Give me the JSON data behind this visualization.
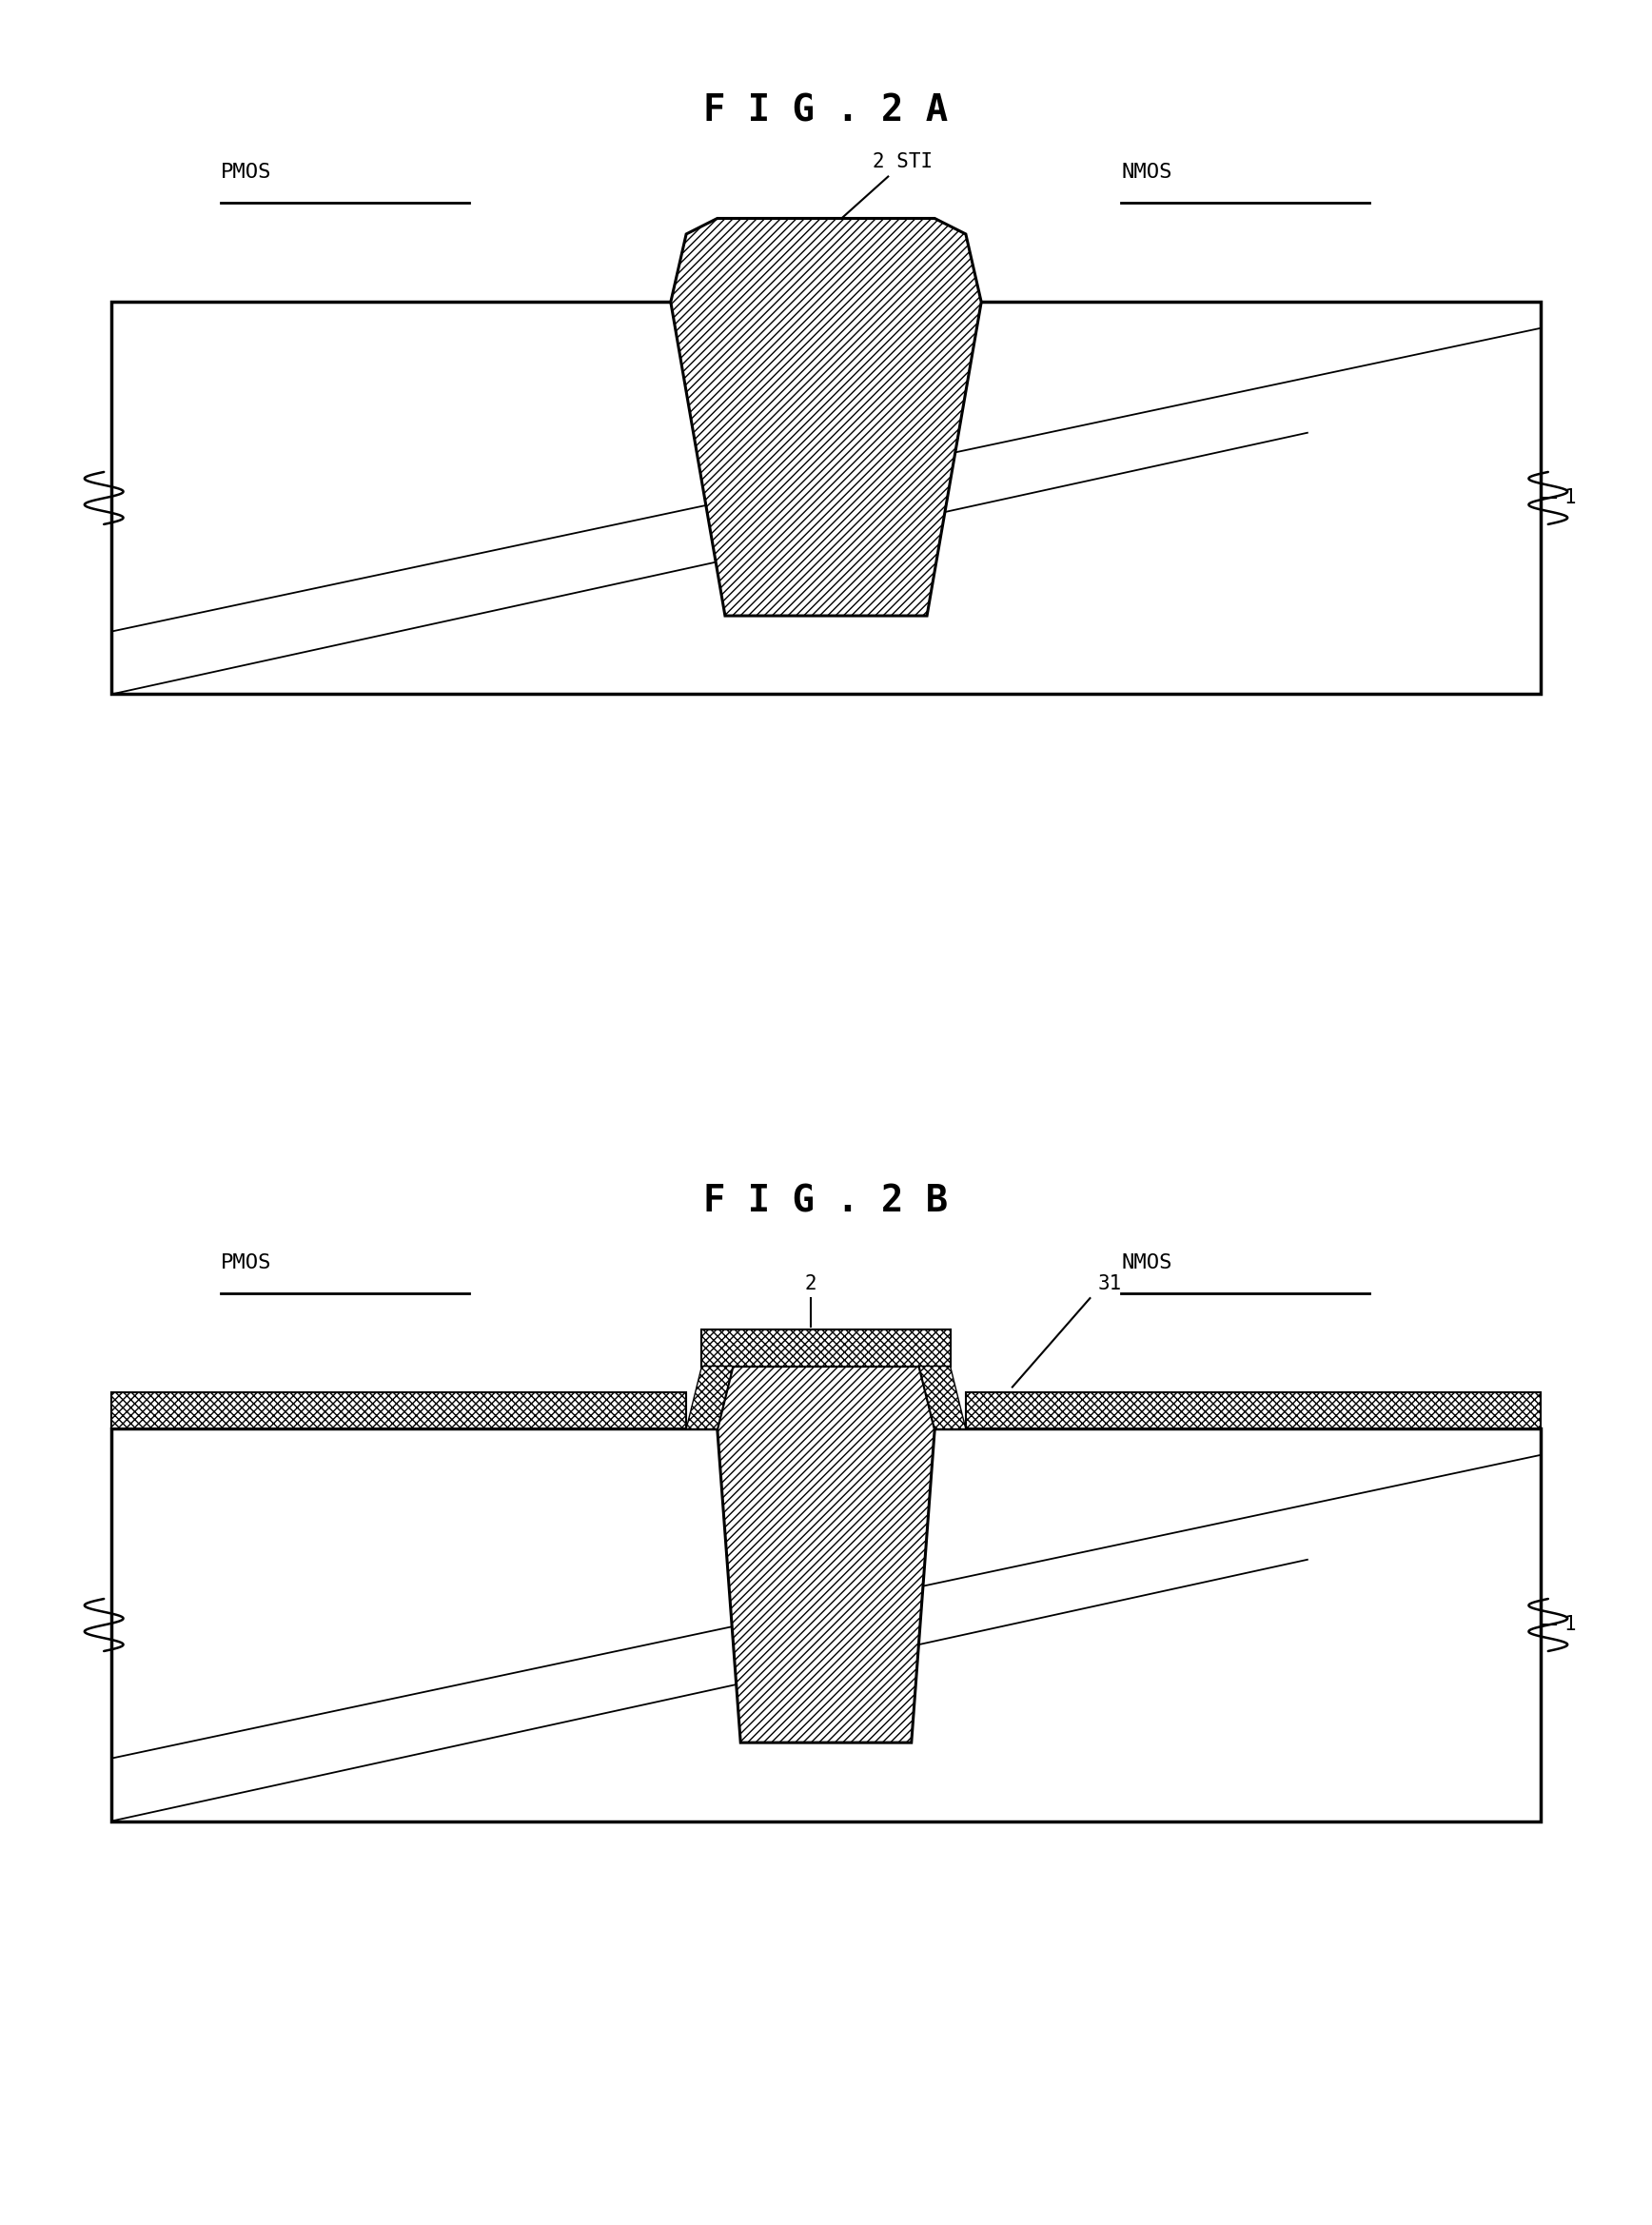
{
  "fig_title_a": "F I G . 2 A",
  "fig_title_b": "F I G . 2 B",
  "label_pmos": "PMOS",
  "label_nmos": "NMOS",
  "label_1": "1",
  "label_2a": "2 STI",
  "label_2b": "2",
  "label_31": "31",
  "bg_color": "#ffffff",
  "line_color": "#000000"
}
